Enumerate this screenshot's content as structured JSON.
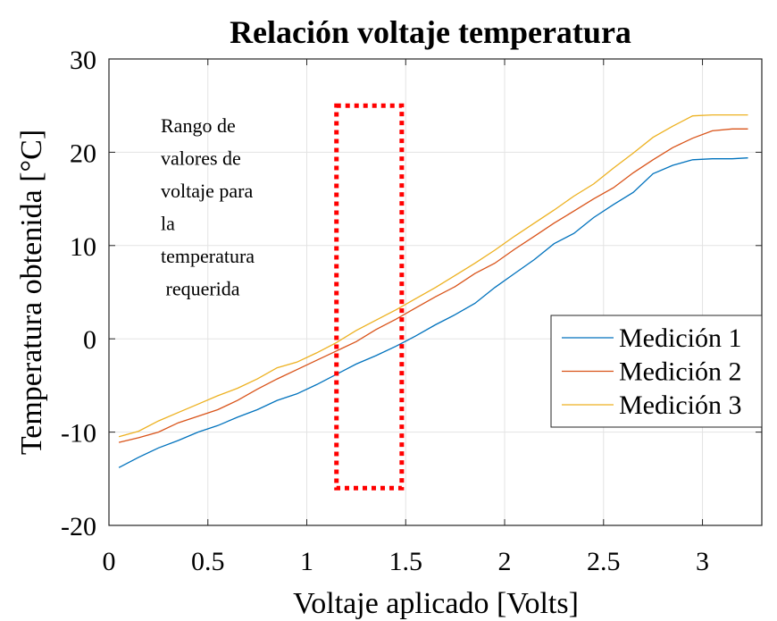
{
  "chart_data": {
    "type": "line",
    "title": "Relación voltaje temperatura",
    "xlabel": "Voltaje aplicado [Volts]",
    "ylabel": "Temperatura obtenida [°C]",
    "xlim": [
      0,
      3.3
    ],
    "ylim": [
      -20,
      30
    ],
    "xticks": [
      0,
      0.5,
      1,
      1.5,
      2,
      2.5,
      3
    ],
    "xtick_labels": [
      "0",
      "0.5",
      "1",
      "1.5",
      "2",
      "2.5",
      "3"
    ],
    "yticks": [
      -20,
      -10,
      0,
      10,
      20,
      30
    ],
    "ytick_labels": [
      "-20",
      "-10",
      "0",
      "10",
      "20",
      "30"
    ],
    "grid": true,
    "legend_position": "right",
    "series": [
      {
        "name": "Medición 1",
        "color": "#0072BD",
        "x": [
          0.05,
          0.15,
          0.25,
          0.35,
          0.45,
          0.55,
          0.65,
          0.75,
          0.85,
          0.95,
          1.05,
          1.15,
          1.25,
          1.35,
          1.45,
          1.55,
          1.65,
          1.75,
          1.85,
          1.95,
          2.05,
          2.15,
          2.25,
          2.35,
          2.45,
          2.55,
          2.65,
          2.75,
          2.85,
          2.95,
          3.05,
          3.15,
          3.23
        ],
        "y": [
          -13.8,
          -12.7,
          -11.7,
          -10.9,
          -10.0,
          -9.3,
          -8.4,
          -7.6,
          -6.6,
          -5.9,
          -4.9,
          -3.8,
          -2.7,
          -1.8,
          -0.8,
          0.3,
          1.5,
          2.6,
          3.8,
          5.5,
          7.0,
          8.5,
          10.2,
          11.3,
          13.0,
          14.4,
          15.7,
          17.7,
          18.6,
          19.2,
          19.3,
          19.3,
          19.4
        ]
      },
      {
        "name": "Medición 2",
        "color": "#D95319",
        "x": [
          0.05,
          0.15,
          0.25,
          0.35,
          0.45,
          0.55,
          0.65,
          0.75,
          0.85,
          0.95,
          1.05,
          1.15,
          1.25,
          1.35,
          1.45,
          1.55,
          1.65,
          1.75,
          1.85,
          1.95,
          2.05,
          2.15,
          2.25,
          2.35,
          2.45,
          2.55,
          2.65,
          2.75,
          2.85,
          2.95,
          3.05,
          3.15,
          3.23
        ],
        "y": [
          -11.1,
          -10.6,
          -10.0,
          -9.0,
          -8.3,
          -7.6,
          -6.6,
          -5.4,
          -4.3,
          -3.3,
          -2.3,
          -1.3,
          -0.3,
          1.0,
          2.1,
          3.3,
          4.5,
          5.6,
          7.0,
          8.1,
          9.6,
          11.0,
          12.4,
          13.7,
          15.0,
          16.2,
          17.8,
          19.2,
          20.5,
          21.5,
          22.3,
          22.5,
          22.5
        ]
      },
      {
        "name": "Medición 3",
        "color": "#EDB120",
        "x": [
          0.05,
          0.15,
          0.25,
          0.35,
          0.45,
          0.55,
          0.65,
          0.75,
          0.85,
          0.95,
          1.05,
          1.15,
          1.25,
          1.35,
          1.45,
          1.55,
          1.65,
          1.75,
          1.85,
          1.95,
          2.05,
          2.15,
          2.25,
          2.35,
          2.45,
          2.55,
          2.65,
          2.75,
          2.85,
          2.95,
          3.05,
          3.15,
          3.23
        ],
        "y": [
          -10.5,
          -9.9,
          -8.8,
          -7.9,
          -7.0,
          -6.1,
          -5.3,
          -4.3,
          -3.1,
          -2.5,
          -1.5,
          -0.4,
          0.9,
          2.0,
          3.1,
          4.3,
          5.5,
          6.8,
          8.1,
          9.5,
          11.0,
          12.4,
          13.8,
          15.3,
          16.6,
          18.3,
          19.9,
          21.6,
          22.8,
          23.9,
          24.0,
          24.0,
          24.0
        ]
      }
    ],
    "annotations": [
      {
        "lines": [
          "Rango de",
          "valores de",
          "voltaje para",
          "la",
          "temperatura",
          " requerida"
        ]
      }
    ],
    "highlight_box": {
      "x_range": [
        1.15,
        1.48
      ],
      "y_range": [
        -16,
        25
      ],
      "color": "#FF0000",
      "style": "dotted"
    }
  }
}
